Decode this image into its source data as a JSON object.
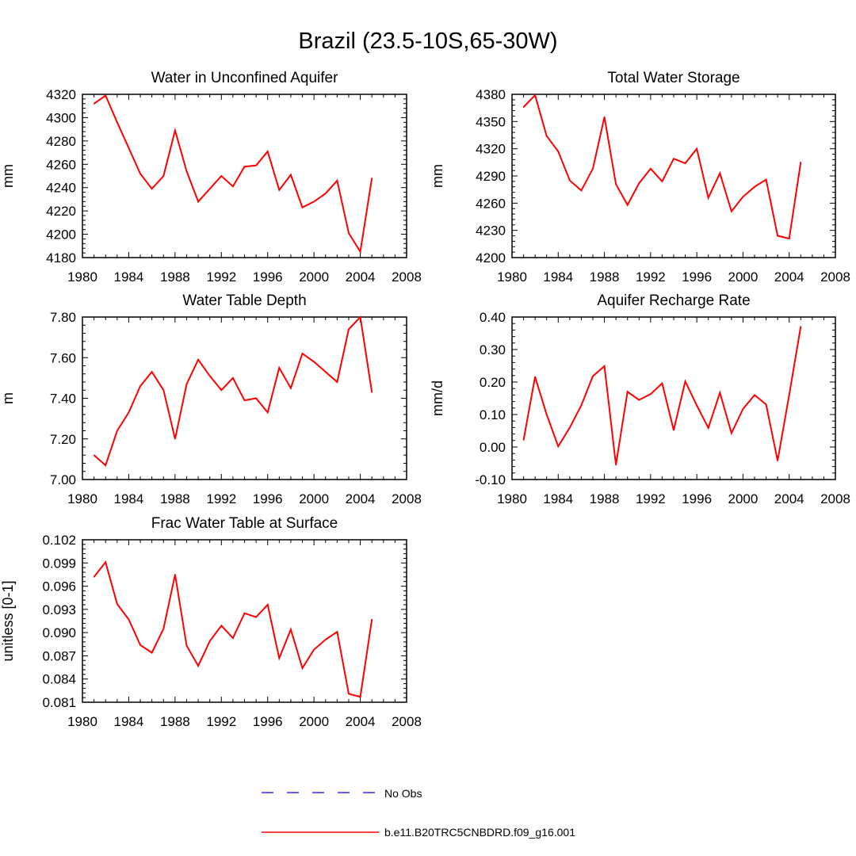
{
  "figure_title": "Brazil (23.5-10S,65-30W)",
  "colors": {
    "series": "#ff0000",
    "obs": "#0000ff",
    "axis": "#000000"
  },
  "legend": [
    {
      "label": "No Obs",
      "color": "#0000ff",
      "style": "dashed"
    },
    {
      "label": "b.e11.B20TRC5CNBDRD.f09_g16.001",
      "color": "#ff0000",
      "style": "solid"
    }
  ],
  "chart_data": [
    {
      "type": "line",
      "title": "Water in Unconfined Aquifer",
      "xlabel": "",
      "ylabel": "mm",
      "xlim": [
        1980,
        2008
      ],
      "ylim": [
        4180,
        4320
      ],
      "xticks": [
        "1980",
        "1984",
        "1988",
        "1992",
        "1996",
        "2000",
        "2004",
        "2008"
      ],
      "yticks": [
        "4180",
        "4200",
        "4220",
        "4240",
        "4260",
        "4280",
        "4300",
        "4320"
      ],
      "series": [
        {
          "name": "b.e11.B20TRC5CNBDRD.f09_g16.001",
          "x": [
            1981,
            1982,
            1983,
            1984,
            1985,
            1986,
            1987,
            1988,
            1989,
            1990,
            1991,
            1992,
            1993,
            1994,
            1995,
            1996,
            1997,
            1998,
            1999,
            2000,
            2001,
            2002,
            2003,
            2004,
            2005
          ],
          "values": [
            4312,
            4319,
            4296,
            4274,
            4252,
            4239,
            4250,
            4289,
            4254,
            4228,
            4239,
            4250,
            4241,
            4258,
            4259,
            4271,
            4238,
            4251,
            4223,
            4228,
            4235,
            4246,
            4201,
            4185,
            4248
          ]
        }
      ]
    },
    {
      "type": "line",
      "title": "Total Water Storage",
      "xlabel": "",
      "ylabel": "mm",
      "xlim": [
        1980,
        2008
      ],
      "ylim": [
        4200,
        4380
      ],
      "xticks": [
        "1980",
        "1984",
        "1988",
        "1992",
        "1996",
        "2000",
        "2004",
        "2008"
      ],
      "yticks": [
        "4200",
        "4230",
        "4260",
        "4290",
        "4320",
        "4350",
        "4380"
      ],
      "series": [
        {
          "name": "b.e11.B20TRC5CNBDRD.f09_g16.001",
          "x": [
            1981,
            1982,
            1983,
            1984,
            1985,
            1986,
            1987,
            1988,
            1989,
            1990,
            1991,
            1992,
            1993,
            1994,
            1995,
            1996,
            1997,
            1998,
            1999,
            2000,
            2001,
            2002,
            2003,
            2004,
            2005
          ],
          "values": [
            4366,
            4379,
            4334,
            4317,
            4285,
            4274,
            4298,
            4355,
            4281,
            4258,
            4282,
            4298,
            4284,
            4309,
            4304,
            4320,
            4266,
            4293,
            4251,
            4267,
            4278,
            4286,
            4224,
            4221,
            4305
          ]
        }
      ]
    },
    {
      "type": "line",
      "title": "Water Table Depth",
      "xlabel": "",
      "ylabel": "m",
      "xlim": [
        1980,
        2008
      ],
      "ylim": [
        7.0,
        7.8
      ],
      "xticks": [
        "1980",
        "1984",
        "1988",
        "1992",
        "1996",
        "2000",
        "2004",
        "2008"
      ],
      "yticks": [
        "7.00",
        "7.20",
        "7.40",
        "7.60",
        "7.80"
      ],
      "series": [
        {
          "name": "b.e11.B20TRC5CNBDRD.f09_g16.001",
          "x": [
            1981,
            1982,
            1983,
            1984,
            1985,
            1986,
            1987,
            1988,
            1989,
            1990,
            1991,
            1992,
            1993,
            1994,
            1995,
            1996,
            1997,
            1998,
            1999,
            2000,
            2001,
            2002,
            2003,
            2004,
            2005
          ],
          "values": [
            7.12,
            7.07,
            7.24,
            7.33,
            7.46,
            7.53,
            7.44,
            7.2,
            7.47,
            7.59,
            7.51,
            7.44,
            7.5,
            7.39,
            7.4,
            7.33,
            7.55,
            7.45,
            7.62,
            7.58,
            7.53,
            7.48,
            7.74,
            7.8,
            7.43
          ]
        }
      ]
    },
    {
      "type": "line",
      "title": "Aquifer Recharge Rate",
      "xlabel": "",
      "ylabel": "mm/d",
      "xlim": [
        1980,
        2008
      ],
      "ylim": [
        -0.1,
        0.4
      ],
      "xticks": [
        "1980",
        "1984",
        "1988",
        "1992",
        "1996",
        "2000",
        "2004",
        "2008"
      ],
      "yticks": [
        "-0.10",
        "0.00",
        "0.10",
        "0.20",
        "0.30",
        "0.40"
      ],
      "series": [
        {
          "name": "b.e11.B20TRC5CNBDRD.f09_g16.001",
          "x": [
            1981,
            1982,
            1983,
            1984,
            1985,
            1986,
            1987,
            1988,
            1989,
            1990,
            1991,
            1992,
            1993,
            1994,
            1995,
            1996,
            1997,
            1998,
            1999,
            2000,
            2001,
            2002,
            2003,
            2004,
            2005
          ],
          "values": [
            0.022,
            0.216,
            0.1,
            0.002,
            0.06,
            0.128,
            0.218,
            0.249,
            -0.055,
            0.17,
            0.145,
            0.163,
            0.196,
            0.052,
            0.202,
            0.128,
            0.059,
            0.167,
            0.043,
            0.117,
            0.16,
            0.131,
            -0.042,
            0.16,
            0.371
          ]
        }
      ]
    },
    {
      "type": "line",
      "title": "Frac Water Table at Surface",
      "xlabel": "",
      "ylabel": "unitless [0-1]",
      "xlim": [
        1980,
        2008
      ],
      "ylim": [
        0.081,
        0.102
      ],
      "xticks": [
        "1980",
        "1984",
        "1988",
        "1992",
        "1996",
        "2000",
        "2004",
        "2008"
      ],
      "yticks": [
        "0.081",
        "0.084",
        "0.087",
        "0.090",
        "0.093",
        "0.096",
        "0.099",
        "0.102"
      ],
      "series": [
        {
          "name": "b.e11.B20TRC5CNBDRD.f09_g16.001",
          "x": [
            1981,
            1982,
            1983,
            1984,
            1985,
            1986,
            1987,
            1988,
            1989,
            1990,
            1991,
            1992,
            1993,
            1994,
            1995,
            1996,
            1997,
            1998,
            1999,
            2000,
            2001,
            2002,
            2003,
            2004,
            2005
          ],
          "values": [
            0.0972,
            0.0991,
            0.0937,
            0.0917,
            0.0884,
            0.0874,
            0.0905,
            0.0975,
            0.0883,
            0.0857,
            0.0889,
            0.0909,
            0.0893,
            0.0925,
            0.092,
            0.0936,
            0.0867,
            0.0904,
            0.0854,
            0.0878,
            0.0891,
            0.0901,
            0.0821,
            0.0817,
            0.0917
          ]
        }
      ]
    }
  ]
}
